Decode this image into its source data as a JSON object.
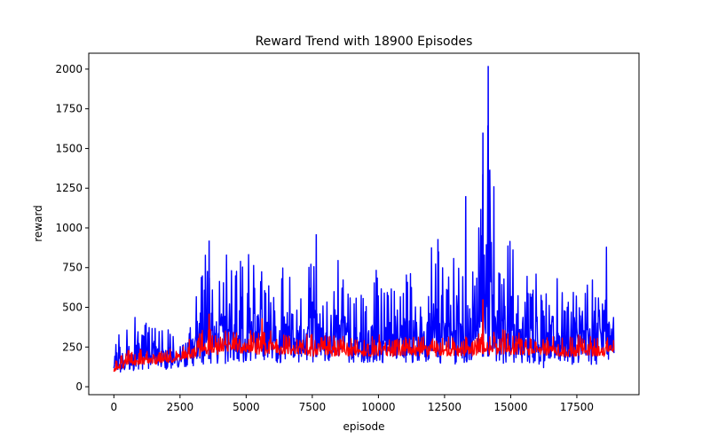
{
  "chart_data": {
    "type": "line",
    "title": "Reward Trend with 18900 Episodes",
    "xlabel": "episode",
    "ylabel": "reward",
    "xlim": [
      -950,
      19850
    ],
    "ylim": [
      -50,
      2100
    ],
    "x_ticks": [
      0,
      2500,
      5000,
      7500,
      10000,
      12500,
      15000,
      17500
    ],
    "y_ticks": [
      0,
      250,
      500,
      750,
      1000,
      1250,
      1500,
      1750,
      2000
    ],
    "grid": false,
    "series": [
      {
        "color": "#0000ff",
        "values_description": "per-episode reward range (min..max), blue band",
        "x": [
          0,
          250,
          500,
          750,
          1000,
          1250,
          1500,
          1750,
          2000,
          2250,
          2500,
          2750,
          3000,
          3250,
          3500,
          3750,
          4000,
          4250,
          4500,
          4750,
          5000,
          5250,
          5500,
          5750,
          6000,
          6250,
          6500,
          6750,
          7000,
          7250,
          7500,
          7750,
          8000,
          8250,
          8500,
          8750,
          9000,
          9250,
          9500,
          9750,
          10000,
          10250,
          10500,
          10750,
          11000,
          11250,
          11500,
          11750,
          12000,
          12250,
          12500,
          12750,
          13000,
          13250,
          13500,
          13750,
          14000,
          14250,
          14500,
          14750,
          15000,
          15250,
          15500,
          15750,
          16000,
          16250,
          16500,
          16750,
          17000,
          17250,
          17500,
          17750,
          18000,
          18250,
          18500,
          18750,
          18900
        ],
        "min": [
          60,
          80,
          90,
          100,
          110,
          100,
          110,
          105,
          110,
          110,
          120,
          120,
          125,
          130,
          130,
          140,
          140,
          140,
          145,
          145,
          150,
          145,
          150,
          150,
          155,
          150,
          150,
          150,
          150,
          150,
          150,
          145,
          145,
          145,
          150,
          150,
          150,
          150,
          150,
          145,
          145,
          145,
          150,
          150,
          150,
          145,
          150,
          150,
          150,
          145,
          145,
          140,
          145,
          145,
          150,
          145,
          150,
          150,
          150,
          145,
          150,
          150,
          145,
          145,
          150,
          105,
          150,
          145,
          150,
          140,
          145,
          145,
          140,
          130,
          140,
          145,
          150
        ],
        "max": [
          310,
          350,
          390,
          420,
          640,
          420,
          380,
          400,
          370,
          350,
          400,
          460,
          520,
          650,
          920,
          600,
          680,
          860,
          700,
          800,
          880,
          860,
          900,
          680,
          700,
          640,
          880,
          640,
          540,
          650,
          960,
          620,
          560,
          700,
          820,
          600,
          560,
          600,
          700,
          560,
          820,
          620,
          700,
          600,
          720,
          760,
          560,
          560,
          880,
          900,
          760,
          740,
          1100,
          600,
          700,
          1000,
          1600,
          2020,
          720,
          740,
          1080,
          750,
          720,
          680,
          720,
          560,
          640,
          800,
          560,
          620,
          800,
          700,
          760,
          700,
          930,
          830,
          470
        ],
        "spikes": [
          {
            "x": 14150,
            "y": 2020
          },
          {
            "x": 13950,
            "y": 1600
          },
          {
            "x": 13300,
            "y": 1200
          },
          {
            "x": 12250,
            "y": 930
          },
          {
            "x": 7650,
            "y": 960
          },
          {
            "x": 3600,
            "y": 920
          }
        ]
      },
      {
        "color": "#ff0000",
        "values_description": "smoothed average reward, red band",
        "x": [
          0,
          500,
          1000,
          1500,
          2000,
          2500,
          3000,
          3500,
          4000,
          4500,
          5000,
          5500,
          6000,
          6500,
          7000,
          7500,
          8000,
          8500,
          9000,
          9500,
          10000,
          10500,
          11000,
          11500,
          12000,
          12500,
          13000,
          13500,
          14000,
          14500,
          15000,
          15500,
          16000,
          16500,
          17000,
          17500,
          18000,
          18500,
          18900
        ],
        "low": [
          90,
          130,
          140,
          140,
          150,
          160,
          180,
          200,
          200,
          210,
          210,
          200,
          200,
          200,
          200,
          190,
          190,
          190,
          190,
          190,
          190,
          190,
          190,
          190,
          190,
          190,
          190,
          190,
          200,
          200,
          200,
          200,
          200,
          190,
          190,
          190,
          190,
          190,
          200
        ],
        "high": [
          170,
          230,
          240,
          220,
          230,
          260,
          320,
          380,
          360,
          350,
          380,
          340,
          360,
          330,
          320,
          340,
          320,
          320,
          330,
          320,
          330,
          320,
          330,
          320,
          340,
          340,
          330,
          340,
          360,
          380,
          360,
          340,
          330,
          320,
          320,
          340,
          340,
          320,
          330
        ],
        "spikes": [
          {
            "x": 3600,
            "y": 460
          },
          {
            "x": 13950,
            "y": 550
          },
          {
            "x": 5600,
            "y": 430
          }
        ]
      }
    ]
  }
}
